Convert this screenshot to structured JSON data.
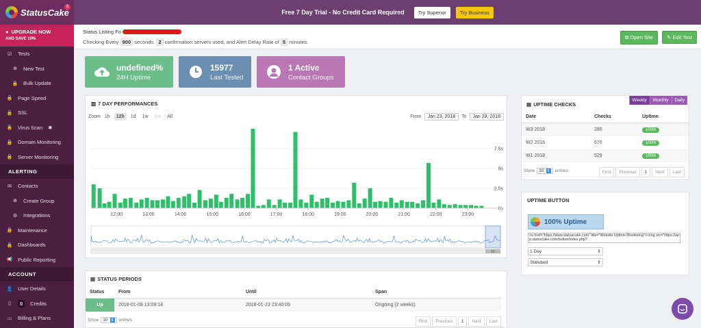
{
  "brand": {
    "name": "StatusCake",
    "badge": "6"
  },
  "sidebar": {
    "upgrade": {
      "line1": "UPGRADE NOW",
      "line2": "AND SAVE 10%"
    },
    "items": [
      {
        "label": "Tests",
        "icon": "check-square-icon",
        "sub": false
      },
      {
        "label": "New Test",
        "icon": "plus-circle-icon",
        "sub": true
      },
      {
        "label": "Bulk Update",
        "icon": "lock-icon",
        "sub": true
      },
      {
        "label": "Page Speed",
        "icon": "lock-icon",
        "sub": false
      },
      {
        "label": "SSL",
        "icon": "lock-icon",
        "sub": false
      },
      {
        "label": "Virus Scan",
        "icon": "lock-icon",
        "sub": false,
        "extra": "✱"
      },
      {
        "label": "Domain Monitoring",
        "icon": "lock-icon",
        "sub": false
      },
      {
        "label": "Server Monitoring",
        "icon": "lock-icon",
        "sub": false
      }
    ],
    "alerting_label": "ALERTING",
    "alerting_items": [
      {
        "label": "Contacts",
        "icon": "envelope-icon",
        "sub": false
      },
      {
        "label": "Create Group",
        "icon": "plus-circle-icon",
        "sub": true
      },
      {
        "label": "Integrations",
        "icon": "cogs-icon",
        "sub": true
      },
      {
        "label": "Maintenance",
        "icon": "lock-icon",
        "sub": false
      },
      {
        "label": "Dashboards",
        "icon": "lock-icon",
        "sub": false
      },
      {
        "label": "Public Reporting",
        "icon": "bullhorn-icon",
        "sub": false
      }
    ],
    "account_label": "ACCOUNT",
    "account_items": [
      {
        "label": "User Details",
        "icon": "user-icon"
      },
      {
        "label": "Credits",
        "icon": "mobile-icon",
        "count": "0"
      },
      {
        "label": "Billing & Plans",
        "icon": "credit-card-icon"
      }
    ]
  },
  "topbar": {
    "promo": "Free 7 Day Trial - No Credit Card Required",
    "try_superior": "Try Superior",
    "try_business": "Try Business"
  },
  "info": {
    "listing_prefix": "Status Listing Fo",
    "every": "Checking Every",
    "seconds_value": "900",
    "seconds_text": "seconds.",
    "servers_value": "2",
    "servers_text": "confirmation servers used, and Alert Delay Rate of",
    "delay_value": "5",
    "delay_text": "minutes.",
    "open_site": "Open Site",
    "edit_test": "Edit Test"
  },
  "stats": [
    {
      "value": "undefined%",
      "label": "24H Uptime",
      "color": "#6dbd8a",
      "icon": "cloud-upload-icon"
    },
    {
      "value": "15977",
      "label": "Last Tested",
      "color": "#6a8fb0",
      "icon": "clock-icon"
    },
    {
      "value": "1 Active",
      "label": "Contact Groups",
      "color": "#b977b5",
      "icon": "user-circle-icon"
    }
  ],
  "performance": {
    "title": "7 DAY PERFORMANCES",
    "zoom_label": "Zoom",
    "zoom": [
      "1h",
      "12h",
      "1d",
      "1w",
      "1m",
      "All"
    ],
    "zoom_active": "12h",
    "zoom_disabled": "1m",
    "from_label": "From",
    "from_date": "Jan 23, 2018",
    "to_label": "To",
    "to_date": "Jan 23, 2018"
  },
  "chart_data": {
    "type": "bar",
    "title": "",
    "xlabel": "",
    "ylabel": "",
    "x_ticks": [
      "12:00",
      "13:00",
      "14:00",
      "15:00",
      "16:00",
      "17:00",
      "18:00",
      "19:00",
      "20:00",
      "21:00",
      "22:00",
      "23:00"
    ],
    "y_ticks": [
      "0s",
      "2.5s",
      "5s",
      "7.5s"
    ],
    "ylim": [
      0,
      10
    ],
    "x_start": 11.2,
    "x_end": 23.55,
    "color": "#2ebf6a",
    "x": [
      11.28,
      11.47,
      11.62,
      11.77,
      11.94,
      12.12,
      12.27,
      12.44,
      12.62,
      12.78,
      12.95,
      13.12,
      13.28,
      13.45,
      13.61,
      13.77,
      13.94,
      14.12,
      14.27,
      14.44,
      14.6,
      14.78,
      14.95,
      15.12,
      15.27,
      15.44,
      15.6,
      15.78,
      15.94,
      16.11,
      16.27,
      16.44,
      16.6,
      16.77,
      16.94,
      17.11,
      17.27,
      17.44,
      17.6,
      17.77,
      17.94,
      18.11,
      18.27,
      18.44,
      18.6,
      18.77,
      18.93,
      19.1,
      19.27,
      19.44,
      19.6,
      19.77,
      19.94,
      20.1,
      20.26,
      20.43,
      20.6,
      20.77,
      20.93,
      21.1,
      21.26,
      21.43,
      21.6,
      21.77,
      21.93,
      22.1,
      22.26,
      22.43,
      22.6,
      22.77,
      22.93,
      23.1,
      23.26,
      23.43
    ],
    "values": [
      3.0,
      2.5,
      0.6,
      0.8,
      1.8,
      0.7,
      1.2,
      1.3,
      0.7,
      1.1,
      1.3,
      1.0,
      1.0,
      1.1,
      1.5,
      0.9,
      1.3,
      1.5,
      1.8,
      0.7,
      2.3,
      1.0,
      1.2,
      1.7,
      0.8,
      1.3,
      1.8,
      1.1,
      1.3,
      1.8,
      10.0,
      0.3,
      0.4,
      1.1,
      0.4,
      1.1,
      0.7,
      0.7,
      9.6,
      1.1,
      0.7,
      1.7,
      0.8,
      1.2,
      1.3,
      0.7,
      0.9,
      0.8,
      1.0,
      3.2,
      0.6,
      1.2,
      2.5,
      0.8,
      0.9,
      0.8,
      1.3,
      0.7,
      1.0,
      0.8,
      0.8,
      0.6,
      1.0,
      5.7,
      0.7,
      1.1,
      0.5,
      0.4,
      0.5,
      0.4,
      0.4,
      0.4,
      0.3,
      0.3
    ]
  },
  "uptime_checks": {
    "title": "UPTIME CHECKS",
    "tabs": [
      "Weekly",
      "Monthly",
      "Daily"
    ],
    "headers": [
      "Date",
      "Checks",
      "Uptime"
    ],
    "rows": [
      {
        "date": "W3 2018",
        "checks": "285",
        "uptime": "100%"
      },
      {
        "date": "W2 2018",
        "checks": "676",
        "uptime": "100%"
      },
      {
        "date": "W1 2018",
        "checks": "529",
        "uptime": "100%"
      }
    ],
    "show_label": "Show",
    "show_value": "10",
    "entries_label": "entries",
    "pager": [
      "First",
      "Previous",
      "1",
      "Next",
      "Last"
    ]
  },
  "uptime_button": {
    "title": "UPTIME BUTTON",
    "badge_text": "100% Uptime",
    "embed_code": "<a href=\"https://www.statuscake.com\" title=\"Website Uptime Monitoring\"><img src=\"https://app.statuscake.com/button/index.php?",
    "period_value": "1 Day",
    "style_value": "Standard"
  },
  "status_periods": {
    "title": "STATUS PERIODS",
    "headers": [
      "Status",
      "From",
      "Until",
      "Span"
    ],
    "rows": [
      {
        "status": "Up",
        "from": "2018-01-08 13:09:14",
        "until": "2018-01-23 23:40:09",
        "span": "Ongoing (2 weeks)"
      }
    ],
    "show_label": "Show",
    "show_value": "10",
    "entries_label": "entries",
    "pager": [
      "First",
      "Previous",
      "1",
      "Next",
      "Last"
    ]
  },
  "navigator": {
    "scroll_label": "10"
  }
}
